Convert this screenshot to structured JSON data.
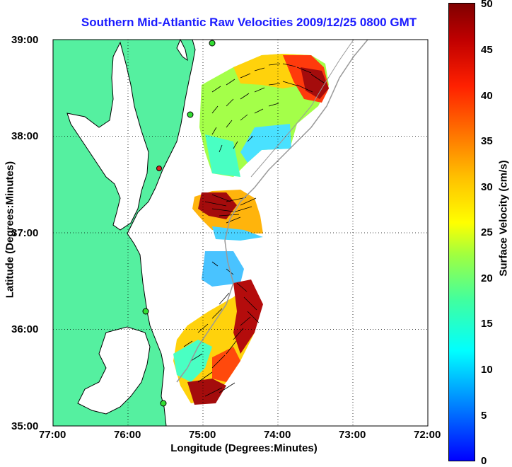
{
  "title": "Southern Mid-Atlantic Raw Velocities 2009/12/25 0800 GMT",
  "x_axis": {
    "label": "Longitude (Degrees:Minutes)",
    "ticks": [
      "77:00",
      "76:00",
      "75:00",
      "74:00",
      "73:00",
      "72:00"
    ]
  },
  "y_axis": {
    "label": "Latitude (Degrees:Minutes)",
    "ticks": [
      "39:00",
      "38:00",
      "37:00",
      "36:00",
      "35:00"
    ]
  },
  "colorbar": {
    "label": "Surface Velocity (cm/s)",
    "ticks": [
      "50",
      "45",
      "40",
      "35",
      "30",
      "25",
      "20",
      "15",
      "10",
      "5",
      "0"
    ],
    "colors": {
      "low": "#0000ff",
      "mid": "#ffff00",
      "high": "#800000"
    }
  },
  "colors": {
    "land": "#55f0a0",
    "coast": "#000000",
    "title": "#1a1aff"
  }
}
